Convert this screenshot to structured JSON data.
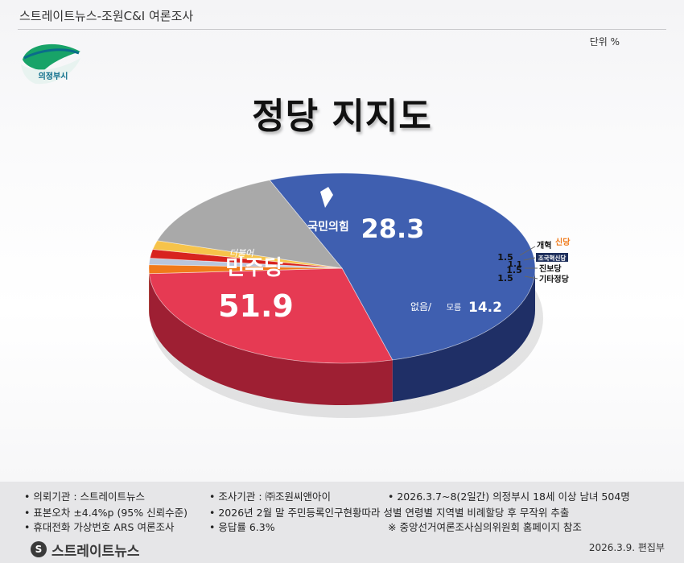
{
  "header": {
    "title": "스트레이트뉴스-조원C&I 여론조사"
  },
  "unit_label": "단위 %",
  "logo": {
    "text": "의정부시"
  },
  "chart_data": {
    "type": "pie",
    "title": "정당 지지도",
    "slices": [
      {
        "label": "더불어민주당",
        "value": 51.9,
        "color": "#3f5fb0",
        "side": "#1f2f66"
      },
      {
        "label": "국민의힘",
        "value": 28.3,
        "color": "#e63a53",
        "side": "#9e1f33"
      },
      {
        "label": "개혁신당",
        "value": 1.5,
        "color": "#f07a1a",
        "side": "#a54e0c"
      },
      {
        "label": "조국혁신당",
        "value": 1.1,
        "color": "#b9c6dc",
        "side": "#7a8aa3"
      },
      {
        "label": "진보당",
        "value": 1.5,
        "color": "#d8231f",
        "side": "#8c1412"
      },
      {
        "label": "기타정당",
        "value": 1.5,
        "color": "#f6c34a",
        "side": "#b58b22"
      },
      {
        "label": "없음/ 모름",
        "value": 14.2,
        "color": "#a9a9a9",
        "side": "#4a4a4a"
      }
    ],
    "labels": {
      "minjoo_top": "더불어",
      "minjoo_name": "민주당",
      "minjoo_value": "51.9",
      "ppp_name": "국민의힘",
      "ppp_value": "28.3",
      "none_name": "없음/",
      "none_sub": "모름",
      "none_value": "14.2",
      "reform_name_a": "개혁",
      "reform_name_b": "신당",
      "reform_value": "1.5",
      "rebuild_name": "조국혁신당",
      "rebuild_value": "1.1",
      "progressive_name": "진보당",
      "progressive_value": "1.5",
      "other_name": "기타정당",
      "other_value": "1.5"
    }
  },
  "footer": {
    "items": [
      "• 의뢰기관 : 스트레이트뉴스",
      "• 조사기관 : ㈜조원씨앤아이",
      "• 2026.3.7~8(2일간) 의정부시 18세 이상 남녀 504명",
      "• 표본오차 ±4.4%p (95% 신뢰수준)",
      "• 2026년 2월 말 주민등록인구현황따라 성별 연령별 지역별 비례할당 후 무작위 추출",
      "• 휴대전화 가상번호 ARS 여론조사",
      "• 응답률 6.3%",
      "※ 중앙선거여론조사심의위원회 홈페이지 참조"
    ],
    "date": "2026.3.9.  편집부",
    "brand_name": "스트레이트뉴스",
    "brand_mark": "S"
  }
}
